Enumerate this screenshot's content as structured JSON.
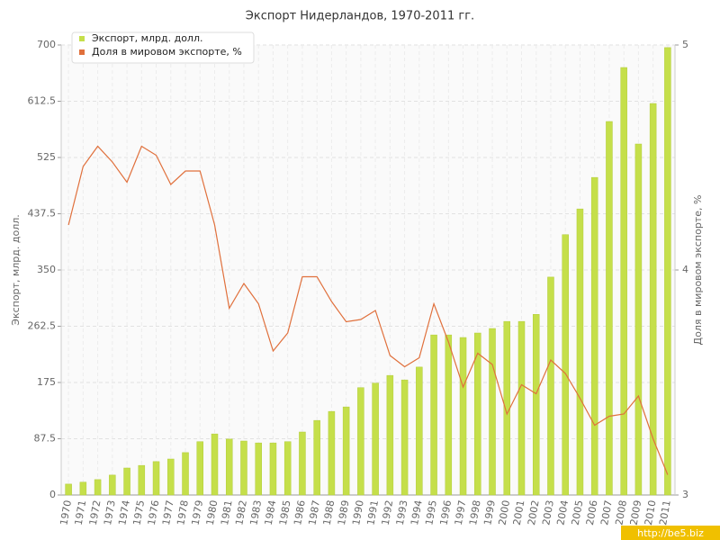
{
  "chart_data": {
    "type": "bar-line",
    "title": "Экспорт Нидерландов, 1970-2011 гг.",
    "y_label": "Экспорт, млрд. долл.",
    "y2_label": "Доля в мировом экспорте, %",
    "watermark": "http://be5.biz",
    "categories": [
      "1970",
      "1971",
      "1972",
      "1973",
      "1974",
      "1975",
      "1976",
      "1977",
      "1978",
      "1979",
      "1980",
      "1981",
      "1982",
      "1983",
      "1984",
      "1985",
      "1986",
      "1987",
      "1988",
      "1989",
      "1990",
      "1991",
      "1992",
      "1993",
      "1994",
      "1995",
      "1996",
      "1997",
      "1998",
      "1999",
      "2000",
      "2001",
      "2002",
      "2003",
      "2004",
      "2005",
      "2006",
      "2007",
      "2008",
      "2009",
      "2010",
      "2011"
    ],
    "series": [
      {
        "name": "Экспорт, млрд. долл.",
        "color": "#c5df4a",
        "type": "bar",
        "values": [
          17,
          20,
          24,
          31,
          42,
          46,
          52,
          56,
          66,
          83,
          95,
          87,
          84,
          81,
          81,
          83,
          98,
          116,
          130,
          137,
          167,
          174,
          186,
          179,
          199,
          249,
          249,
          245,
          252,
          259,
          270,
          270,
          281,
          339,
          405,
          445,
          494,
          581,
          665,
          546,
          609,
          696
        ]
      },
      {
        "name": "Доля в мировом экспорте, %",
        "color": "#e0703c",
        "type": "line",
        "axis": "y2",
        "values": [
          4.2,
          4.46,
          4.55,
          4.48,
          4.39,
          4.55,
          4.51,
          4.38,
          4.44,
          4.44,
          4.2,
          3.83,
          3.94,
          3.85,
          3.64,
          3.72,
          3.97,
          3.97,
          3.86,
          3.77,
          3.78,
          3.82,
          3.62,
          3.57,
          3.61,
          3.85,
          3.68,
          3.48,
          3.63,
          3.58,
          3.36,
          3.49,
          3.45,
          3.6,
          3.54,
          3.43,
          3.31,
          3.35,
          3.36,
          3.44,
          3.25,
          3.09
        ]
      }
    ],
    "ylim": [
      0,
      700
    ],
    "yticks": [
      0,
      87.5,
      175,
      262.5,
      350,
      437.5,
      525,
      612.5,
      700
    ],
    "y2lim": [
      3,
      5
    ],
    "y2ticks": [
      3,
      4,
      5
    ],
    "grid": true,
    "legend": "top-left"
  }
}
